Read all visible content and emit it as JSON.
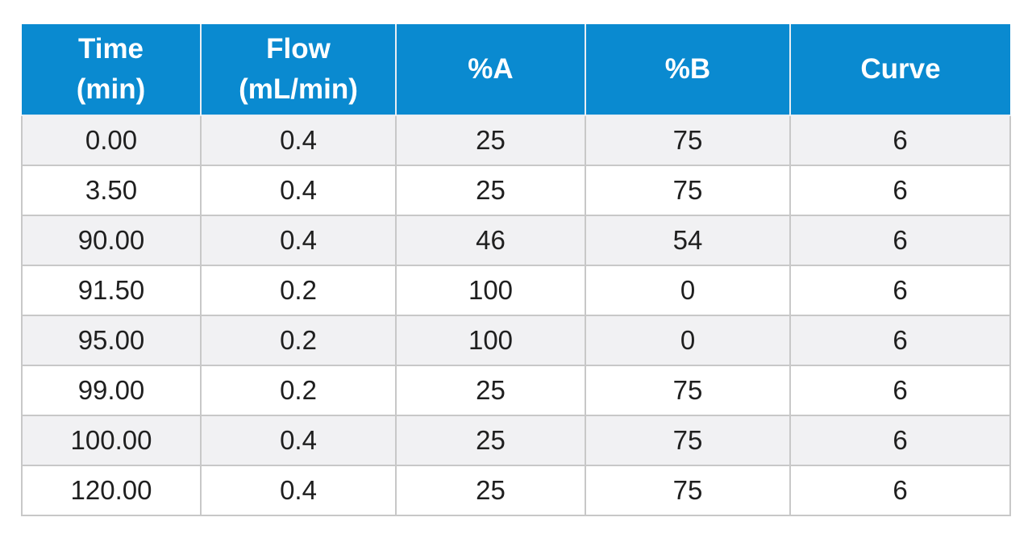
{
  "chart_data": {
    "type": "table",
    "columns": [
      {
        "line1": "Time",
        "line2": "(min)"
      },
      {
        "line1": "Flow",
        "line2": "(mL/min)"
      },
      {
        "line1": "%A",
        "line2": ""
      },
      {
        "line1": "%B",
        "line2": ""
      },
      {
        "line1": "Curve",
        "line2": ""
      }
    ],
    "rows": [
      [
        "0.00",
        "0.4",
        "25",
        "75",
        "6"
      ],
      [
        "3.50",
        "0.4",
        "25",
        "75",
        "6"
      ],
      [
        "90.00",
        "0.4",
        "46",
        "54",
        "6"
      ],
      [
        "91.50",
        "0.2",
        "100",
        "0",
        "6"
      ],
      [
        "95.00",
        "0.2",
        "100",
        "0",
        "6"
      ],
      [
        "99.00",
        "0.2",
        "25",
        "75",
        "6"
      ],
      [
        "100.00",
        "0.4",
        "25",
        "75",
        "6"
      ],
      [
        "120.00",
        "0.4",
        "25",
        "75",
        "6"
      ]
    ]
  },
  "colors": {
    "header_background": "#0a8ad0",
    "header_text": "#ffffff",
    "odd_row_background": "#f1f1f3",
    "even_row_background": "#ffffff",
    "cell_border": "#c8c8c8"
  }
}
